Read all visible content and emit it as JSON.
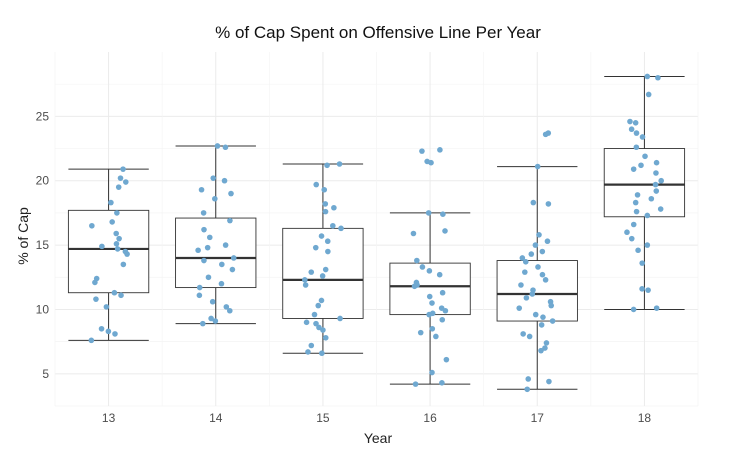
{
  "chart_data": {
    "type": "box",
    "title": "% of Cap Spent on Offensive Line Per Year",
    "xlabel": "Year",
    "ylabel": "% of Cap",
    "categories": [
      "13",
      "14",
      "15",
      "16",
      "17",
      "18"
    ],
    "ylim": [
      2.5,
      30
    ],
    "yticks": [
      5,
      10,
      15,
      20,
      25
    ],
    "grid": true,
    "point_color": "#6fa8d0",
    "box_stroke": "#333333",
    "boxes": [
      {
        "category": "13",
        "min": 7.6,
        "q1": 11.3,
        "median": 14.7,
        "q3": 17.7,
        "max": 20.9
      },
      {
        "category": "14",
        "min": 8.9,
        "q1": 11.7,
        "median": 14.0,
        "q3": 17.1,
        "max": 22.7
      },
      {
        "category": "15",
        "min": 6.6,
        "q1": 9.3,
        "median": 12.3,
        "q3": 16.3,
        "max": 21.3
      },
      {
        "category": "16",
        "min": 4.2,
        "q1": 9.6,
        "median": 11.8,
        "q3": 13.6,
        "max": 17.5
      },
      {
        "category": "17",
        "min": 3.8,
        "q1": 9.1,
        "median": 11.2,
        "q3": 13.8,
        "max": 21.1
      },
      {
        "category": "18",
        "min": 10.0,
        "q1": 17.2,
        "median": 19.7,
        "q3": 22.5,
        "max": 28.1
      }
    ],
    "points": [
      {
        "category": "13",
        "values": [
          20.9,
          20.2,
          19.9,
          19.5,
          18.3,
          17.5,
          16.8,
          16.5,
          15.9,
          15.5,
          15.1,
          14.9,
          14.7,
          14.5,
          14.3,
          13.5,
          12.4,
          12.1,
          11.3,
          11.1,
          10.8,
          10.2,
          8.5,
          8.3,
          8.1,
          7.6
        ]
      },
      {
        "category": "14",
        "values": [
          22.7,
          22.6,
          20.2,
          20.0,
          19.3,
          19.0,
          18.6,
          17.5,
          16.9,
          16.2,
          15.6,
          15.0,
          14.8,
          14.6,
          14.0,
          13.8,
          13.5,
          13.1,
          12.5,
          12.0,
          11.7,
          11.1,
          10.6,
          10.2,
          9.9,
          9.3,
          9.1,
          8.9
        ]
      },
      {
        "category": "15",
        "values": [
          21.3,
          21.2,
          19.7,
          19.3,
          18.2,
          17.9,
          17.6,
          16.5,
          16.3,
          15.7,
          15.3,
          14.8,
          14.5,
          13.1,
          12.9,
          12.6,
          12.3,
          11.9,
          10.7,
          10.3,
          9.6,
          9.3,
          9.0,
          8.9,
          8.6,
          8.4,
          7.8,
          7.2,
          6.7,
          6.6
        ]
      },
      {
        "category": "16",
        "values": [
          22.4,
          22.3,
          21.5,
          21.4,
          17.5,
          17.4,
          16.1,
          15.9,
          13.8,
          13.3,
          13.0,
          12.7,
          12.1,
          11.9,
          11.8,
          11.3,
          11.0,
          10.5,
          10.1,
          9.9,
          9.7,
          9.6,
          9.2,
          8.5,
          8.2,
          7.9,
          6.1,
          5.1,
          4.3,
          4.2
        ]
      },
      {
        "category": "17",
        "values": [
          23.7,
          23.6,
          21.1,
          18.3,
          18.2,
          15.8,
          15.3,
          15.0,
          14.5,
          14.3,
          14.0,
          13.7,
          13.3,
          12.9,
          12.7,
          12.3,
          11.9,
          11.5,
          11.2,
          10.9,
          10.6,
          10.3,
          10.1,
          9.6,
          9.4,
          9.1,
          8.8,
          8.1,
          7.9,
          7.4,
          7.0,
          6.8,
          4.6,
          4.4,
          3.8
        ]
      },
      {
        "category": "18",
        "values": [
          28.1,
          28.0,
          26.7,
          24.6,
          24.5,
          24.0,
          23.7,
          23.4,
          22.6,
          21.9,
          21.4,
          21.2,
          20.9,
          20.6,
          20.0,
          19.7,
          19.2,
          18.9,
          18.6,
          18.3,
          17.8,
          17.6,
          17.3,
          16.6,
          16.0,
          15.5,
          15.0,
          14.6,
          13.6,
          11.6,
          11.5,
          10.1,
          10.0
        ]
      }
    ]
  }
}
